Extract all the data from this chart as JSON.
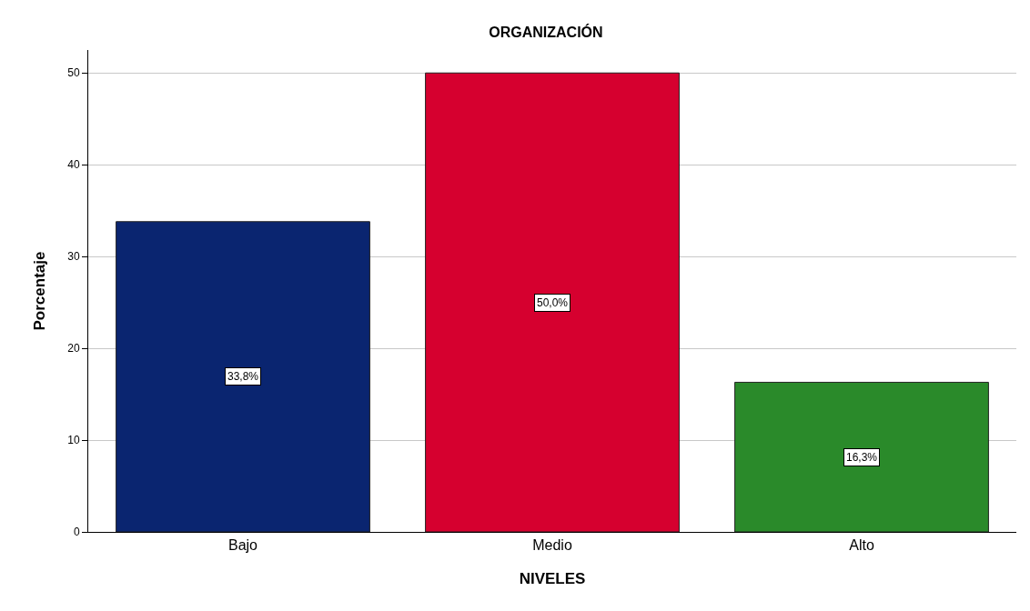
{
  "chart_data": {
    "type": "bar",
    "title": "ORGANIZACIÓN",
    "xlabel": "NIVELES",
    "ylabel": "Porcentaje",
    "categories": [
      "Bajo",
      "Medio",
      "Alto"
    ],
    "values": [
      33.8,
      50.0,
      16.3
    ],
    "colors": [
      "#0a2570",
      "#d6002f",
      "#2a8a2a"
    ],
    "value_labels": [
      "33,8%",
      "50,0%",
      "16,3%"
    ],
    "ylim": [
      0,
      52.5
    ],
    "yticks": [
      0,
      10,
      20,
      30,
      40,
      50
    ],
    "grid": "y"
  }
}
